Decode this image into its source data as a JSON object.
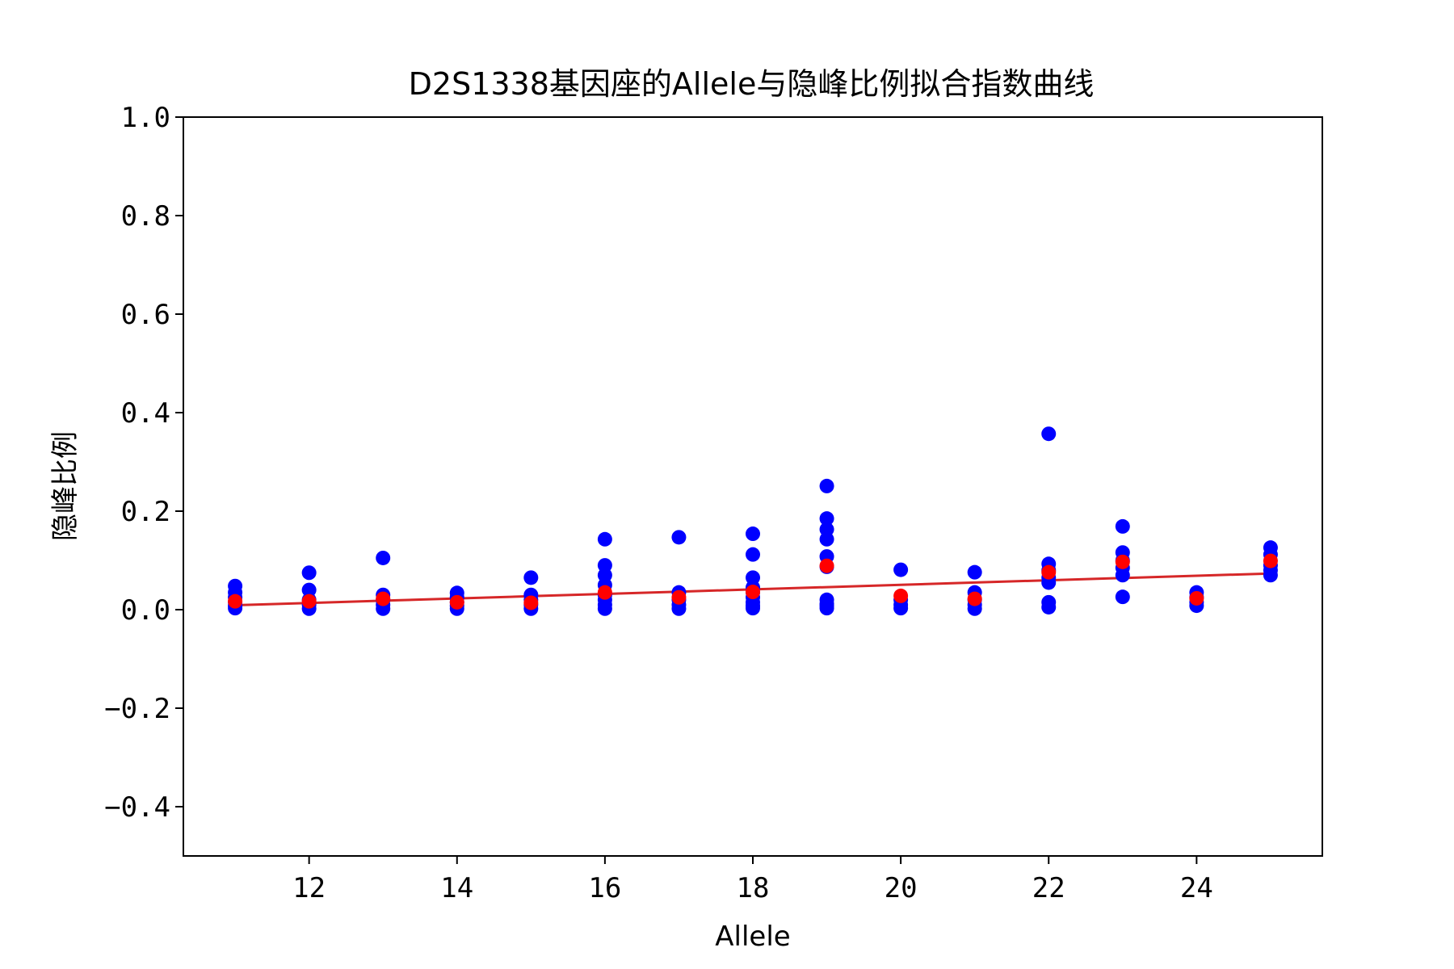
{
  "chart_data": {
    "type": "scatter",
    "title": "D2S1338基因座的Allele与隐峰比例拟合指数曲线",
    "xlabel": "Allele",
    "ylabel": "隐峰比例",
    "xlim": [
      10.3,
      25.7
    ],
    "ylim": [
      -0.5,
      1.0
    ],
    "x_ticks": [
      12,
      14,
      16,
      18,
      20,
      22,
      24
    ],
    "x_tick_labels": [
      "12",
      "14",
      "16",
      "18",
      "20",
      "22",
      "24"
    ],
    "y_ticks": [
      -0.4,
      -0.2,
      0.0,
      0.2,
      0.4,
      0.6,
      0.8,
      1.0
    ],
    "y_tick_labels": [
      "−0.4",
      "−0.2",
      "0.0",
      "0.2",
      "0.4",
      "0.6",
      "0.8",
      "1.0"
    ],
    "grid": false,
    "colors": {
      "observed": "#0000ff",
      "mean": "#ff0000",
      "fit": "#d62728",
      "frame": "#000000"
    },
    "observed_points": {
      "x": [
        11,
        11,
        11,
        11,
        11,
        11,
        12,
        12,
        12,
        12,
        12,
        13,
        13,
        13,
        13,
        13,
        14,
        14,
        14,
        14,
        14,
        15,
        15,
        15,
        15,
        15,
        16,
        16,
        16,
        16,
        16,
        16,
        16,
        16,
        17,
        17,
        17,
        17,
        17,
        18,
        18,
        18,
        18,
        18,
        18,
        18,
        18,
        18,
        19,
        19,
        19,
        19,
        19,
        19,
        19,
        19,
        19,
        19,
        20,
        20,
        20,
        20,
        21,
        21,
        21,
        21,
        21,
        22,
        22,
        22,
        22,
        22,
        22,
        22,
        23,
        23,
        23,
        23,
        23,
        23,
        24,
        24,
        24,
        24,
        25,
        25,
        25,
        25,
        25
      ],
      "y": [
        0.048,
        0.035,
        0.025,
        0.015,
        0.008,
        0.003,
        0.075,
        0.04,
        0.02,
        0.01,
        0.002,
        0.105,
        0.03,
        0.02,
        0.01,
        0.002,
        0.034,
        0.025,
        0.015,
        0.008,
        0.002,
        0.065,
        0.03,
        0.02,
        0.01,
        0.002,
        0.143,
        0.09,
        0.07,
        0.05,
        0.03,
        0.02,
        0.01,
        0.002,
        0.147,
        0.035,
        0.02,
        0.01,
        0.002,
        0.154,
        0.112,
        0.065,
        0.045,
        0.035,
        0.025,
        0.015,
        0.008,
        0.003,
        0.251,
        0.185,
        0.163,
        0.143,
        0.108,
        0.087,
        0.02,
        0.012,
        0.008,
        0.003,
        0.081,
        0.02,
        0.01,
        0.003,
        0.076,
        0.035,
        0.02,
        0.01,
        0.002,
        0.357,
        0.093,
        0.08,
        0.065,
        0.055,
        0.015,
        0.005,
        0.169,
        0.116,
        0.1,
        0.085,
        0.07,
        0.026,
        0.035,
        0.025,
        0.015,
        0.008,
        0.126,
        0.112,
        0.09,
        0.08,
        0.07
      ]
    },
    "mean_points": {
      "x": [
        11,
        12,
        13,
        14,
        15,
        16,
        17,
        18,
        19,
        20,
        21,
        22,
        23,
        24,
        25
      ],
      "y": [
        0.017,
        0.017,
        0.022,
        0.015,
        0.014,
        0.035,
        0.025,
        0.036,
        0.089,
        0.028,
        0.022,
        0.076,
        0.097,
        0.023,
        0.099
      ]
    },
    "fit_curve": {
      "x": [
        11,
        12,
        13,
        14,
        15,
        16,
        17,
        18,
        19,
        20,
        21,
        22,
        23,
        24,
        25
      ],
      "y": [
        0.009,
        0.0136,
        0.0182,
        0.0228,
        0.0274,
        0.032,
        0.0366,
        0.0412,
        0.0458,
        0.0504,
        0.055,
        0.0596,
        0.0642,
        0.0688,
        0.0734
      ]
    }
  }
}
